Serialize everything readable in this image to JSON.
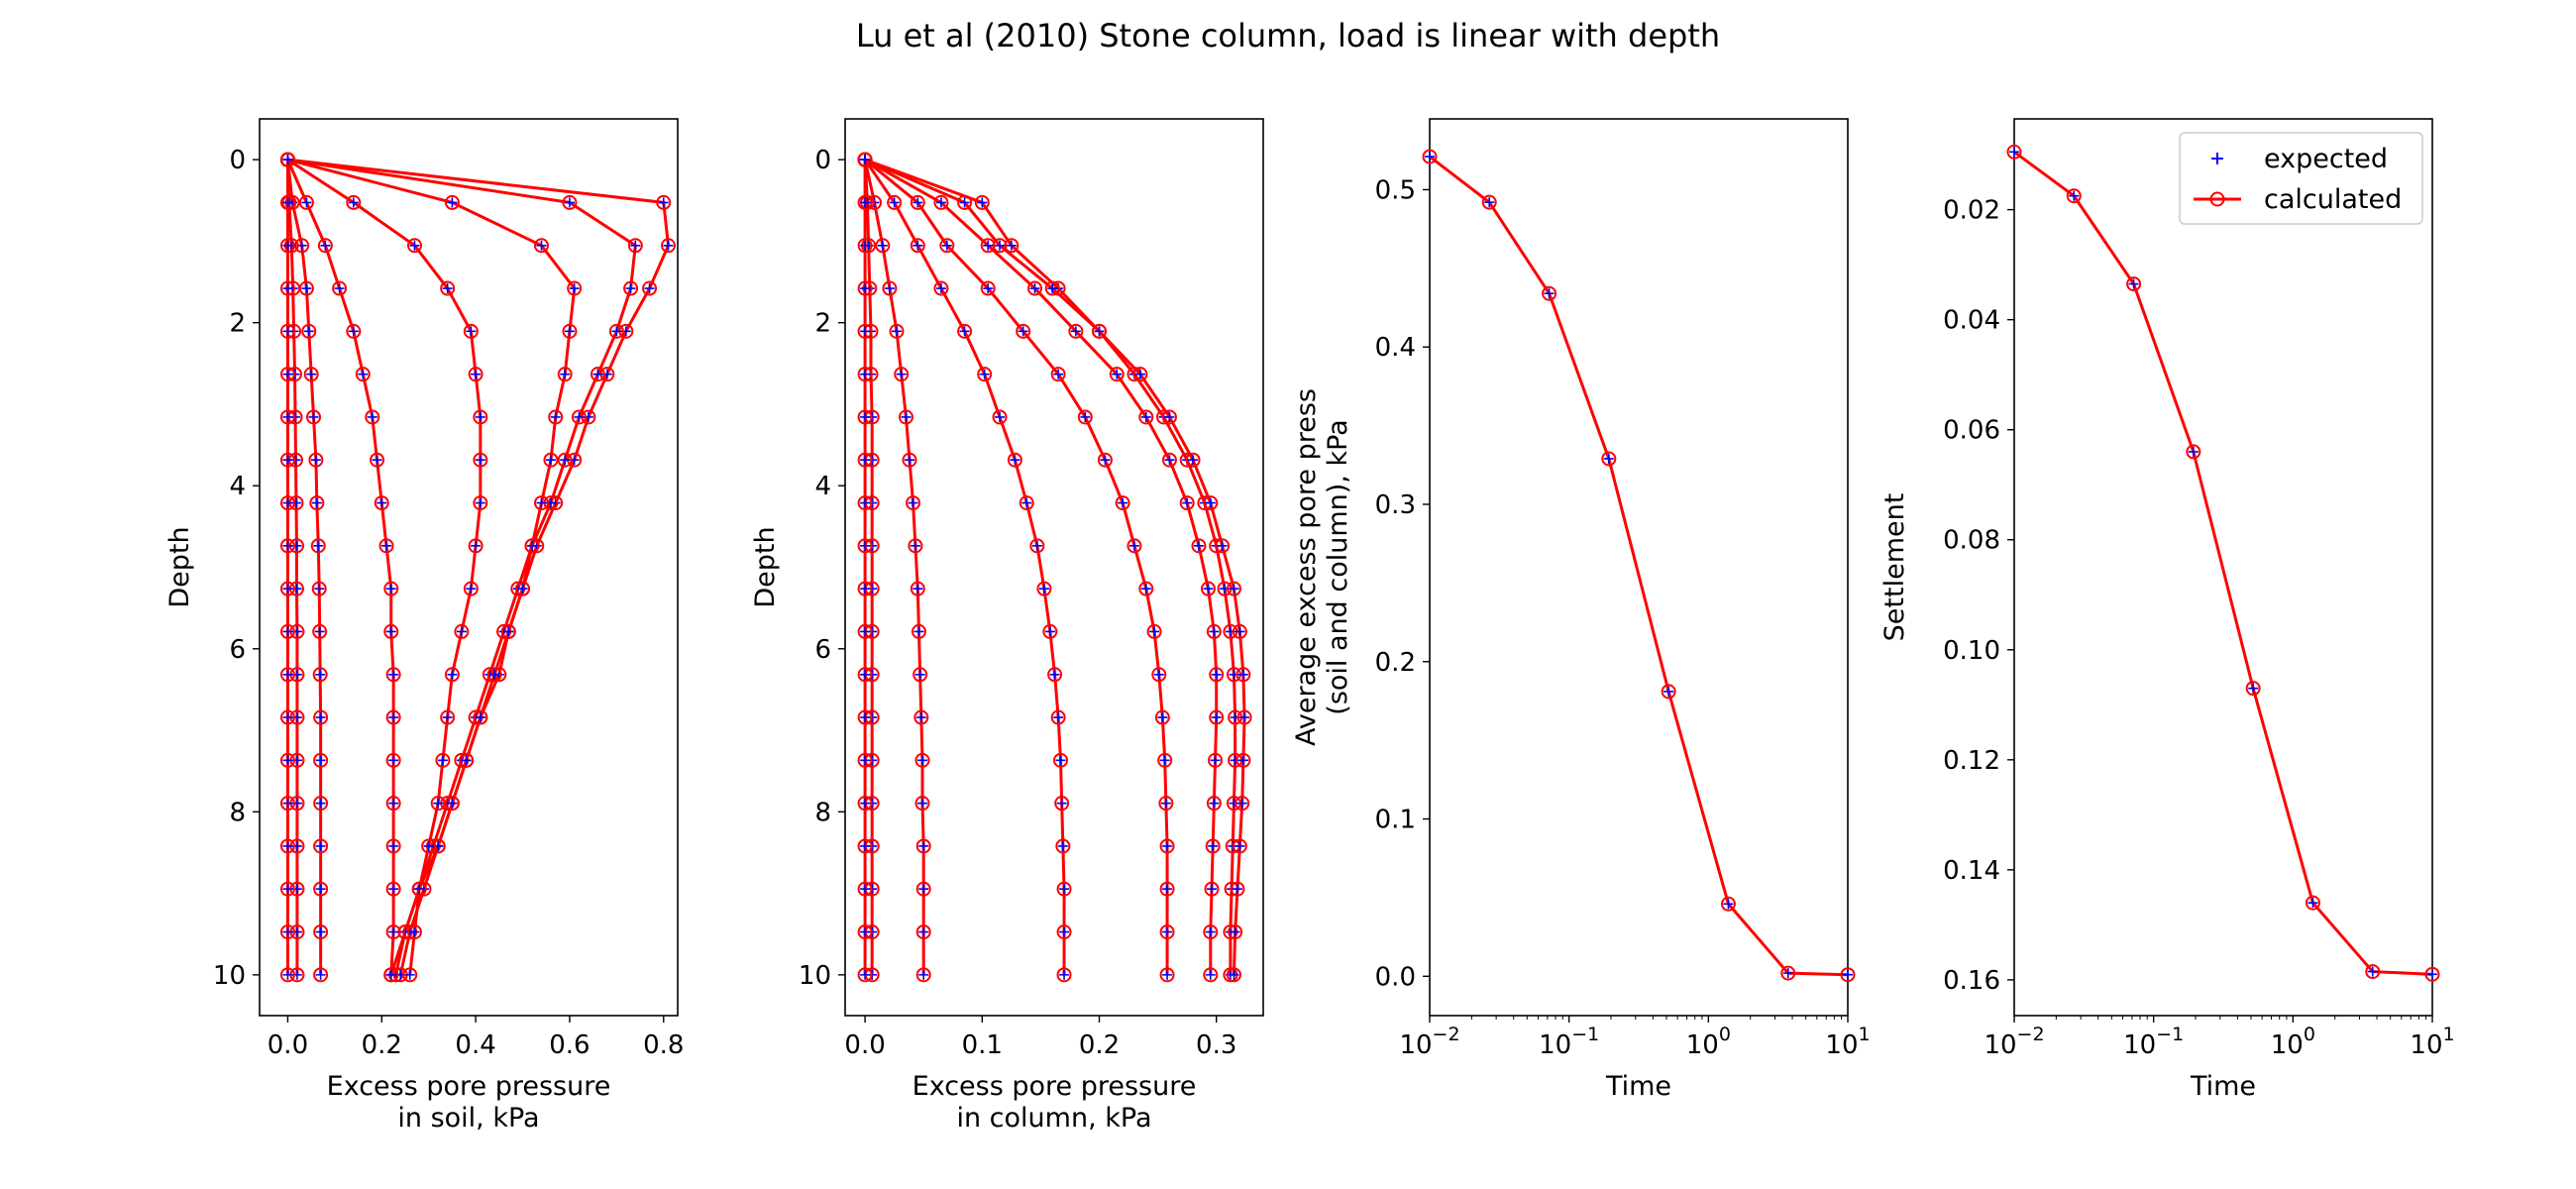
{
  "figure": {
    "title": "Lu et al (2010) Stone column, load is linear with depth"
  },
  "colors": {
    "calculated": "#ff0000",
    "expected": "#0000ff",
    "axes": "#000000"
  },
  "legend": {
    "expected_label": "expected",
    "calculated_label": "calculated",
    "placement": "top-right of settlement panel"
  },
  "chart_data": [
    {
      "type": "line",
      "name": "soil",
      "xlabel": "Excess pore pressure\nin soil, kPa",
      "ylabel": "Depth",
      "xlim": [
        -0.06,
        0.83
      ],
      "ylim": [
        10.5,
        -0.5
      ],
      "y_inverted": true,
      "xticks": [
        0.0,
        0.2,
        0.4,
        0.6,
        0.8
      ],
      "xtick_labels": [
        "0.0",
        "0.2",
        "0.4",
        "0.6",
        "0.8"
      ],
      "yticks": [
        0,
        2,
        4,
        6,
        8,
        10
      ],
      "ytick_labels": [
        "0",
        "2",
        "4",
        "6",
        "8",
        "10"
      ],
      "depths": [
        0.0,
        0.526,
        1.053,
        1.579,
        2.105,
        2.632,
        3.158,
        3.684,
        4.211,
        4.737,
        5.263,
        5.789,
        6.316,
        6.842,
        7.368,
        7.895,
        8.421,
        8.947,
        9.474,
        10.0
      ],
      "series": [
        {
          "values": [
            0.0,
            0.8,
            0.81,
            0.77,
            0.72,
            0.68,
            0.64,
            0.61,
            0.57,
            0.53,
            0.5,
            0.47,
            0.45,
            0.41,
            0.38,
            0.35,
            0.32,
            0.28,
            0.25,
            0.22
          ]
        },
        {
          "values": [
            0.0,
            0.6,
            0.74,
            0.73,
            0.7,
            0.66,
            0.62,
            0.59,
            0.56,
            0.52,
            0.49,
            0.46,
            0.43,
            0.4,
            0.37,
            0.34,
            0.31,
            0.28,
            0.25,
            0.23
          ]
        },
        {
          "values": [
            0.0,
            0.35,
            0.54,
            0.61,
            0.6,
            0.59,
            0.57,
            0.56,
            0.54,
            0.52,
            0.5,
            0.47,
            0.44,
            0.41,
            0.38,
            0.35,
            0.32,
            0.29,
            0.26,
            0.24
          ]
        },
        {
          "values": [
            0.0,
            0.14,
            0.27,
            0.34,
            0.39,
            0.4,
            0.41,
            0.41,
            0.41,
            0.4,
            0.39,
            0.37,
            0.35,
            0.34,
            0.33,
            0.32,
            0.3,
            0.28,
            0.27,
            0.26
          ]
        },
        {
          "values": [
            0.0,
            0.04,
            0.08,
            0.11,
            0.14,
            0.16,
            0.18,
            0.19,
            0.2,
            0.21,
            0.22,
            0.22,
            0.225,
            0.225,
            0.225,
            0.225,
            0.225,
            0.225,
            0.225,
            0.22
          ]
        },
        {
          "values": [
            0.0,
            0.01,
            0.03,
            0.04,
            0.045,
            0.05,
            0.055,
            0.06,
            0.062,
            0.065,
            0.067,
            0.068,
            0.069,
            0.07,
            0.07,
            0.07,
            0.07,
            0.07,
            0.07,
            0.07
          ]
        },
        {
          "values": [
            0.0,
            0.003,
            0.008,
            0.011,
            0.013,
            0.015,
            0.016,
            0.017,
            0.018,
            0.019,
            0.019,
            0.02,
            0.02,
            0.02,
            0.02,
            0.02,
            0.02,
            0.02,
            0.02,
            0.02
          ]
        },
        {
          "values": [
            0.0,
            0.0,
            0.0,
            0.0,
            0.0,
            0.0,
            0.0,
            0.0,
            0.0,
            0.0,
            0.0,
            0.0,
            0.0,
            0.0,
            0.0,
            0.0,
            0.0,
            0.0,
            0.0,
            0.0
          ]
        }
      ]
    },
    {
      "type": "line",
      "name": "column",
      "xlabel": "Excess pore pressure\nin column, kPa",
      "ylabel": "Depth",
      "xlim": [
        -0.017,
        0.34
      ],
      "ylim": [
        10.5,
        -0.5
      ],
      "y_inverted": true,
      "xticks": [
        0.0,
        0.1,
        0.2,
        0.3
      ],
      "xtick_labels": [
        "0.0",
        "0.1",
        "0.2",
        "0.3"
      ],
      "yticks": [
        0,
        2,
        4,
        6,
        8,
        10
      ],
      "ytick_labels": [
        "0",
        "2",
        "4",
        "6",
        "8",
        "10"
      ],
      "depths": [
        0.0,
        0.526,
        1.053,
        1.579,
        2.105,
        2.632,
        3.158,
        3.684,
        4.211,
        4.737,
        5.263,
        5.789,
        6.316,
        6.842,
        7.368,
        7.895,
        8.421,
        8.947,
        9.474,
        10.0
      ],
      "series": [
        {
          "values": [
            0.0,
            0.1,
            0.125,
            0.165,
            0.2,
            0.23,
            0.255,
            0.275,
            0.29,
            0.3,
            0.307,
            0.312,
            0.315,
            0.316,
            0.316,
            0.315,
            0.314,
            0.313,
            0.312,
            0.312
          ]
        },
        {
          "values": [
            0.0,
            0.085,
            0.115,
            0.16,
            0.2,
            0.235,
            0.26,
            0.28,
            0.295,
            0.305,
            0.315,
            0.32,
            0.323,
            0.324,
            0.323,
            0.322,
            0.32,
            0.318,
            0.316,
            0.315
          ]
        },
        {
          "values": [
            0.0,
            0.065,
            0.105,
            0.145,
            0.18,
            0.215,
            0.24,
            0.26,
            0.275,
            0.285,
            0.293,
            0.298,
            0.3,
            0.3,
            0.299,
            0.298,
            0.297,
            0.296,
            0.295,
            0.295
          ]
        },
        {
          "values": [
            0.0,
            0.045,
            0.07,
            0.105,
            0.135,
            0.165,
            0.188,
            0.205,
            0.22,
            0.23,
            0.24,
            0.247,
            0.251,
            0.254,
            0.256,
            0.257,
            0.258,
            0.258,
            0.258,
            0.258
          ]
        },
        {
          "values": [
            0.0,
            0.025,
            0.045,
            0.065,
            0.085,
            0.102,
            0.115,
            0.128,
            0.138,
            0.147,
            0.153,
            0.158,
            0.162,
            0.165,
            0.167,
            0.168,
            0.169,
            0.17,
            0.17,
            0.17
          ]
        },
        {
          "values": [
            0.0,
            0.008,
            0.015,
            0.021,
            0.027,
            0.031,
            0.035,
            0.038,
            0.041,
            0.043,
            0.045,
            0.046,
            0.047,
            0.048,
            0.049,
            0.049,
            0.05,
            0.05,
            0.05,
            0.05
          ]
        },
        {
          "values": [
            0.0,
            0.002,
            0.003,
            0.004,
            0.005,
            0.005,
            0.006,
            0.006,
            0.006,
            0.006,
            0.006,
            0.006,
            0.006,
            0.006,
            0.006,
            0.006,
            0.006,
            0.006,
            0.006,
            0.006
          ]
        },
        {
          "values": [
            0.0,
            0.0,
            0.0,
            0.0,
            0.0,
            0.0,
            0.0,
            0.0,
            0.0,
            0.0,
            0.0,
            0.0,
            0.0,
            0.0,
            0.0,
            0.0,
            0.0,
            0.0,
            0.0,
            0.0
          ]
        }
      ]
    },
    {
      "type": "line",
      "name": "average",
      "xlabel": "Time",
      "ylabel": "Average excess pore press\n(soil and column), kPa",
      "xscale": "log",
      "xlim": [
        0.01,
        10
      ],
      "ylim": [
        -0.025,
        0.545
      ],
      "xticks": [
        0.01,
        0.1,
        1,
        10
      ],
      "xtick_labels": [
        "10^-2",
        "10^-1",
        "10^0",
        "10^1"
      ],
      "yticks": [
        0.0,
        0.1,
        0.2,
        0.3,
        0.4,
        0.5
      ],
      "ytick_labels": [
        "0.0",
        "0.1",
        "0.2",
        "0.3",
        "0.4",
        "0.5"
      ],
      "x": [
        0.01,
        0.0268,
        0.072,
        0.193,
        0.518,
        1.39,
        3.73,
        10.0
      ],
      "series": [
        {
          "values": [
            0.521,
            0.492,
            0.434,
            0.329,
            0.181,
            0.046,
            0.002,
            0.001
          ]
        }
      ]
    },
    {
      "type": "line",
      "name": "settlement",
      "xlabel": "Time",
      "ylabel": "Settlement",
      "xscale": "log",
      "y_inverted": true,
      "xlim": [
        0.01,
        10
      ],
      "ylim": [
        0.1665,
        0.0035
      ],
      "xticks": [
        0.01,
        0.1,
        1,
        10
      ],
      "xtick_labels": [
        "10^-2",
        "10^-1",
        "10^0",
        "10^1"
      ],
      "yticks": [
        0.02,
        0.04,
        0.06,
        0.08,
        0.1,
        0.12,
        0.14,
        0.16
      ],
      "ytick_labels": [
        "0.02",
        "0.04",
        "0.06",
        "0.08",
        "0.10",
        "0.12",
        "0.14",
        "0.16"
      ],
      "x": [
        0.01,
        0.0268,
        0.072,
        0.193,
        0.518,
        1.39,
        3.73,
        10.0
      ],
      "series": [
        {
          "values": [
            0.0095,
            0.0175,
            0.0335,
            0.064,
            0.107,
            0.146,
            0.1585,
            0.159
          ]
        }
      ]
    }
  ]
}
